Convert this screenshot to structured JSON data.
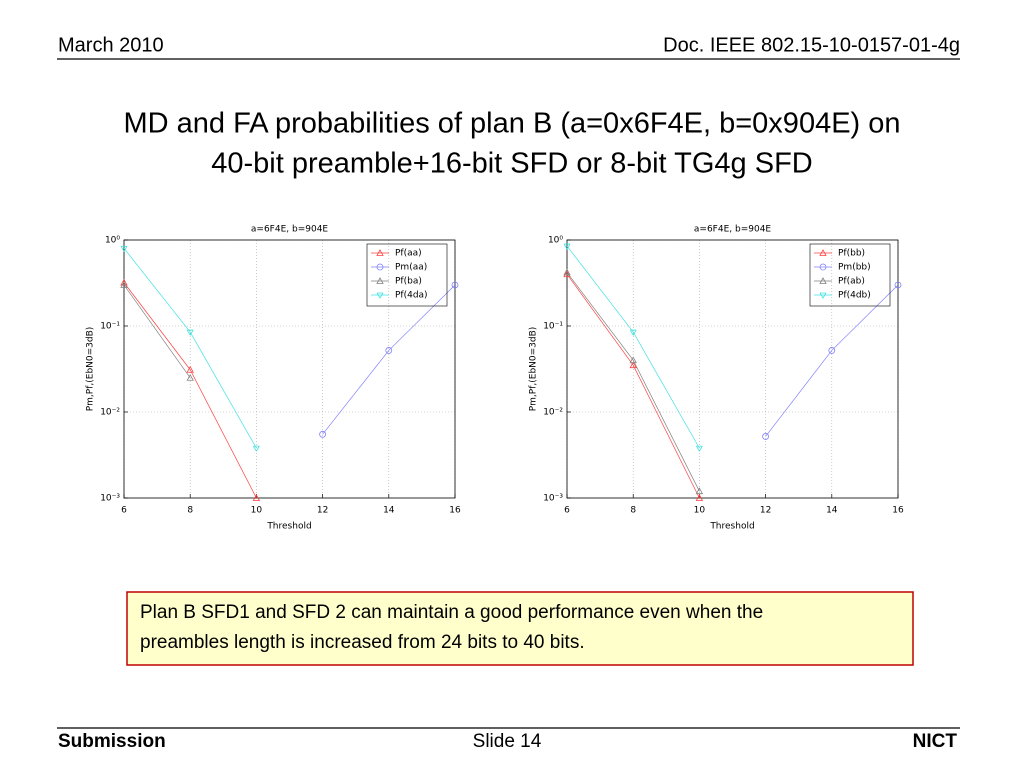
{
  "header": {
    "date": "March 2010",
    "doc": "Doc. IEEE 802.15-10-0157-01-4g"
  },
  "title": [
    "MD and FA probabilities of plan B (a=0x6F4E, b=0x904E) on",
    "40-bit preamble+16-bit SFD or 8-bit TG4g SFD"
  ],
  "note": [
    "Plan B SFD1 and SFD 2 can maintain a good performance even when the",
    "preambles length is increased from 24 bits to 40 bits."
  ],
  "footer": {
    "left": "Submission",
    "center": "Slide 14",
    "right": "NICT"
  },
  "chart_data": [
    {
      "type": "line",
      "title": "a=6F4E, b=904E",
      "x_label": "Threshold",
      "y_label": "Pm,Pf,(EbN0=3dB)",
      "x": [
        6,
        8,
        10,
        12,
        14,
        16
      ],
      "xlim": [
        6,
        16
      ],
      "xticks": [
        6,
        8,
        10,
        12,
        14,
        16
      ],
      "ylim": [
        0.001,
        1
      ],
      "y_scale": "log",
      "grid": true,
      "legend": "upper right",
      "yticks": [
        {
          "value": 0.001,
          "label": "10⁻³"
        },
        {
          "value": 0.01,
          "label": "10⁻²"
        },
        {
          "value": 0.1,
          "label": "10⁻¹"
        },
        {
          "value": 1,
          "label": "10⁰"
        }
      ],
      "series": [
        {
          "name": "Pf(aa)",
          "color": "#ff4040",
          "marker": "triangle",
          "values": [
            0.32,
            0.031,
            0.001,
            null,
            null,
            null
          ]
        },
        {
          "name": "Pm(aa)",
          "color": "#8080ff",
          "marker": "circle",
          "values": [
            null,
            null,
            null,
            0.0055,
            0.052,
            0.3
          ]
        },
        {
          "name": "Pf(ba)",
          "color": "#808080",
          "marker": "triangle",
          "values": [
            0.3,
            0.025,
            null,
            null,
            null,
            null
          ]
        },
        {
          "name": "Pf(4da)",
          "color": "#40e0e0",
          "marker": "v",
          "values": [
            0.8,
            0.085,
            0.0038,
            null,
            null,
            null
          ]
        }
      ]
    },
    {
      "type": "line",
      "title": "a=6F4E, b=904E",
      "x_label": "Threshold",
      "y_label": "Pm,Pf,(EbN0=3dB)",
      "x": [
        6,
        8,
        10,
        12,
        14,
        16
      ],
      "xlim": [
        6,
        16
      ],
      "xticks": [
        6,
        8,
        10,
        12,
        14,
        16
      ],
      "ylim": [
        0.001,
        1
      ],
      "y_scale": "log",
      "grid": true,
      "legend": "upper right",
      "yticks": [
        {
          "value": 0.001,
          "label": "10⁻³"
        },
        {
          "value": 0.01,
          "label": "10⁻²"
        },
        {
          "value": 0.1,
          "label": "10⁻¹"
        },
        {
          "value": 1,
          "label": "10⁰"
        }
      ],
      "series": [
        {
          "name": "Pf(bb)",
          "color": "#ff4040",
          "marker": "triangle",
          "values": [
            0.4,
            0.035,
            0.001,
            null,
            null,
            null
          ]
        },
        {
          "name": "Pm(bb)",
          "color": "#8080ff",
          "marker": "circle",
          "values": [
            null,
            null,
            null,
            0.0052,
            0.052,
            0.3
          ]
        },
        {
          "name": "Pf(ab)",
          "color": "#808080",
          "marker": "triangle",
          "values": [
            0.42,
            0.04,
            0.0012,
            null,
            null,
            null
          ]
        },
        {
          "name": "Pf(4db)",
          "color": "#40e0e0",
          "marker": "v",
          "values": [
            0.85,
            0.085,
            0.0038,
            null,
            null,
            null
          ]
        }
      ]
    }
  ]
}
